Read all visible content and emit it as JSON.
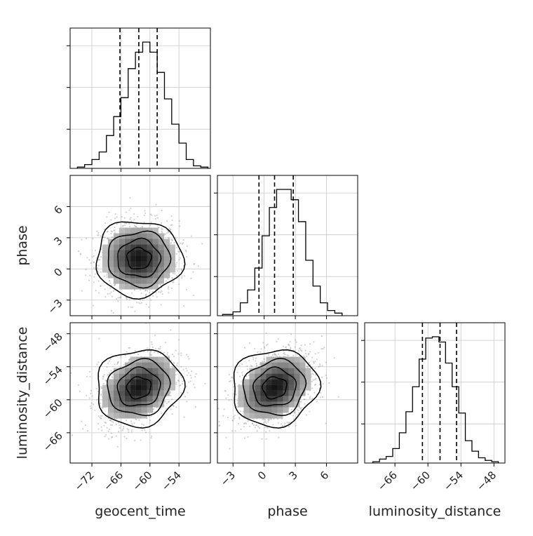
{
  "figure": {
    "variables": [
      "geocent_time",
      "phase",
      "luminosity_distance"
    ]
  },
  "chart_data": [
    {
      "type": "histogram",
      "panel": "geocent_time-1d",
      "x_var": "geocent_time",
      "xlim": [
        -76.5,
        -47.5
      ],
      "x_ticks": [
        -72,
        -66,
        -60,
        -54
      ],
      "bin_edges": [
        -75,
        -73.5,
        -72,
        -70.5,
        -69,
        -67.5,
        -66,
        -64.5,
        -63,
        -61.5,
        -60,
        -58.5,
        -57,
        -55.5,
        -54,
        -52.5,
        -51,
        -49.5,
        -48
      ],
      "counts": [
        0.01,
        0.03,
        0.07,
        0.13,
        0.26,
        0.41,
        0.56,
        0.79,
        0.92,
        1.0,
        0.92,
        0.76,
        0.55,
        0.35,
        0.2,
        0.07,
        0.02,
        0.01
      ],
      "quantiles": [
        -66.2,
        -62.3,
        -58.5
      ],
      "grid": true
    },
    {
      "type": "histogram",
      "panel": "phase-1d",
      "x_var": "phase",
      "xlim": [
        -4.5,
        9.0
      ],
      "x_ticks": [
        -3,
        0,
        3,
        6
      ],
      "bin_edges": [
        -4,
        -3,
        -2.3,
        -1.6,
        -0.9,
        -0.2,
        0.5,
        1.2,
        1.9,
        2.6,
        3.3,
        4.0,
        4.7,
        5.4,
        6.1,
        6.8,
        7.5
      ],
      "counts": [
        0.01,
        0.03,
        0.1,
        0.2,
        0.37,
        0.62,
        0.84,
        0.98,
        0.98,
        0.9,
        0.73,
        0.43,
        0.23,
        0.1,
        0.04,
        0.02
      ],
      "quantiles": [
        -0.5,
        1.0,
        2.8
      ],
      "grid": true
    },
    {
      "type": "histogram",
      "panel": "luminosity_distance-1d",
      "x_var": "luminosity_distance",
      "xlim": [
        -71.5,
        -46.0
      ],
      "x_ticks": [
        -66,
        -60,
        -54,
        -48
      ],
      "bin_edges": [
        -70,
        -68.8,
        -67.6,
        -66.4,
        -65.2,
        -64,
        -62.8,
        -61.6,
        -60.4,
        -59.2,
        -58,
        -56.8,
        -55.6,
        -54.4,
        -53.2,
        -52,
        -50.8,
        -49.6,
        -48.4,
        -47.2
      ],
      "counts": [
        0.01,
        0.03,
        0.05,
        0.11,
        0.23,
        0.39,
        0.58,
        0.79,
        0.95,
        0.96,
        0.92,
        0.76,
        0.58,
        0.38,
        0.17,
        0.09,
        0.04,
        0.02,
        0.01
      ],
      "quantiles": [
        -61.0,
        -57.8,
        -54.8
      ],
      "grid": true
    },
    {
      "type": "scatter+contour",
      "panel": "geocent_time-phase",
      "x_var": "geocent_time",
      "y_var": "phase",
      "xlim": [
        -76.5,
        -47.5
      ],
      "ylim": [
        -4.5,
        9.0
      ],
      "x_ticks": [
        -72,
        -66,
        -60,
        -54
      ],
      "y_ticks": [
        -3,
        0,
        3,
        6
      ],
      "center": [
        -62.3,
        1.0
      ],
      "grid": true
    },
    {
      "type": "scatter+contour",
      "panel": "geocent_time-luminosity_distance",
      "x_var": "geocent_time",
      "y_var": "luminosity_distance",
      "xlim": [
        -76.5,
        -47.5
      ],
      "ylim": [
        -71.5,
        -46.0
      ],
      "x_ticks": [
        -72,
        -66,
        -60,
        -54
      ],
      "y_ticks": [
        -66,
        -60,
        -54,
        -48
      ],
      "center": [
        -62.3,
        -57.8
      ],
      "grid": true
    },
    {
      "type": "scatter+contour",
      "panel": "phase-luminosity_distance",
      "x_var": "phase",
      "y_var": "luminosity_distance",
      "xlim": [
        -4.5,
        9.0
      ],
      "ylim": [
        -71.5,
        -46.0
      ],
      "x_ticks": [
        -3,
        0,
        3,
        6
      ],
      "y_ticks": [
        -66,
        -60,
        -54,
        -48
      ],
      "center": [
        1.0,
        -57.8
      ],
      "grid": true
    }
  ]
}
